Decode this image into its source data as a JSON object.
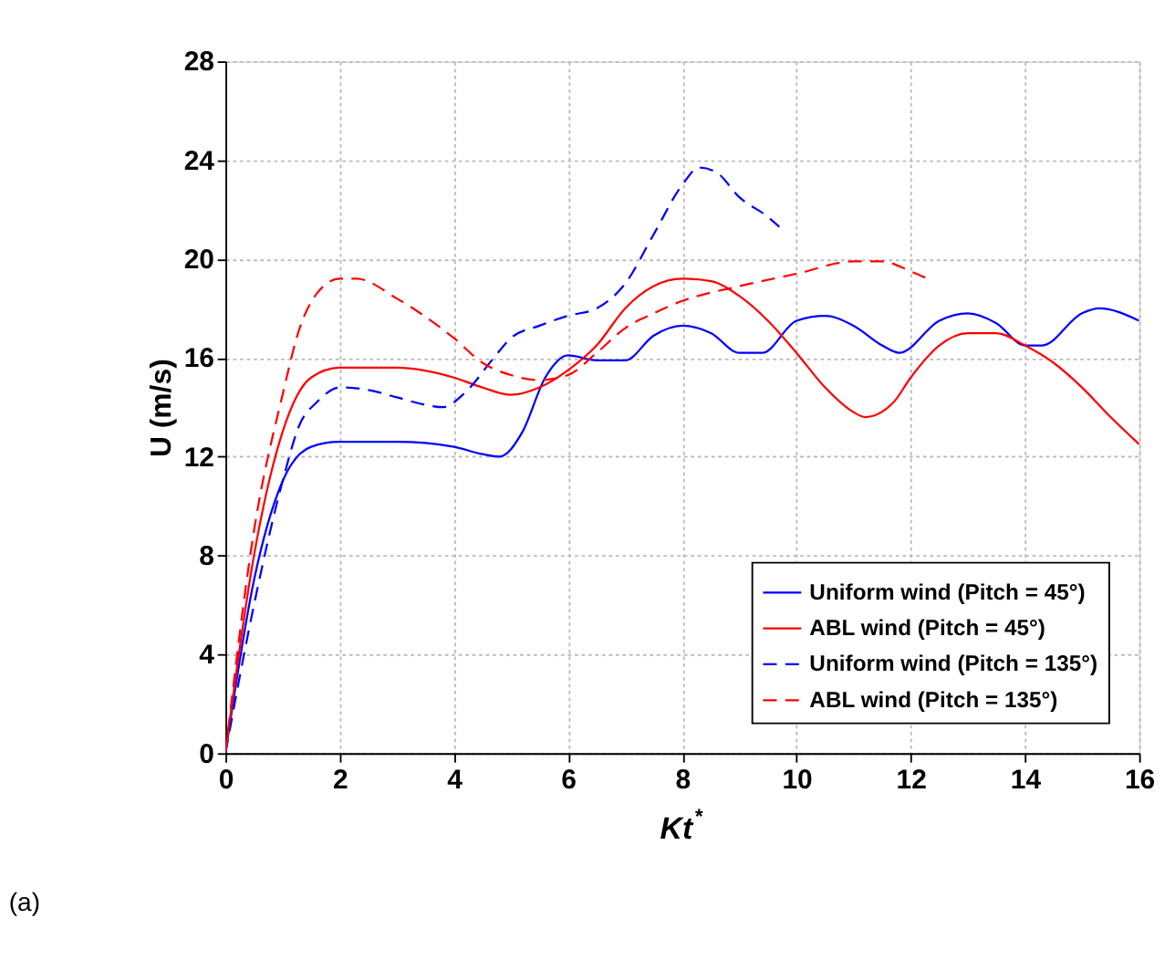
{
  "chart_data": {
    "type": "line",
    "xlabel": "Kt$^{*}$",
    "ylabel": "U (m/s)",
    "xlim": [
      0,
      16
    ],
    "xticks": [
      0,
      2,
      4,
      6,
      8,
      10,
      12,
      14,
      16
    ],
    "ylim": [
      0,
      28
    ],
    "yticks": [
      0,
      4,
      8,
      12,
      16,
      20,
      24,
      28
    ],
    "grid": true,
    "legend": "bottom right",
    "annotations": [
      "(a)"
    ],
    "series": [
      {
        "name": "Uniform wind (Pitch = 45°)",
        "color": "#0000ff",
        "line_style": "solid",
        "x": [
          0,
          0.5,
          1,
          1.5,
          2,
          3,
          4,
          4.5,
          4.8,
          5.2,
          5.6,
          6,
          6.5,
          7,
          7.5,
          8,
          8.5,
          9,
          9.4,
          10,
          10.5,
          11,
          11.5,
          11.8,
          12.5,
          13,
          13.5,
          14,
          14.3,
          15,
          15.3,
          16
        ],
        "values": [
          0,
          7,
          11,
          12.4,
          12.6,
          12.6,
          12.4,
          12.1,
          12.0,
          13,
          15.2,
          16.1,
          15.9,
          15.9,
          16.9,
          17.3,
          17.0,
          16.2,
          16.2,
          17.5,
          17.7,
          17.3,
          16.5,
          16.2,
          17.5,
          17.8,
          17.4,
          16.5,
          16.5,
          17.8,
          18.0,
          17.5
        ]
      },
      {
        "name": "ABL wind (Pitch = 45°)",
        "color": "#ff0000",
        "line_style": "solid",
        "x": [
          0,
          0.5,
          1,
          1.5,
          2,
          3,
          4,
          4.5,
          5,
          5.5,
          6,
          6.5,
          7,
          7.5,
          8,
          8.5,
          9,
          9.5,
          10,
          10.5,
          11,
          11.2,
          11.7,
          12,
          12.5,
          13,
          13.5,
          14,
          14.5,
          15,
          15.5,
          16
        ],
        "values": [
          0,
          8,
          13,
          15.2,
          15.6,
          15.6,
          15.2,
          14.8,
          14.5,
          14.8,
          15.5,
          16.5,
          18,
          18.9,
          19.2,
          19.1,
          18.5,
          17.5,
          16.2,
          14.8,
          13.8,
          13.6,
          14.2,
          15.2,
          16.5,
          17.0,
          17.0,
          16.5,
          15.8,
          14.8,
          13.6,
          12.5
        ]
      },
      {
        "name": "Uniform wind (Pitch = 135°)",
        "color": "#0000ff",
        "line_style": "dashed",
        "x": [
          0,
          0.5,
          1,
          1.3,
          1.6,
          2,
          2.5,
          3,
          3.5,
          3.8,
          4.2,
          4.7,
          5,
          5.5,
          6,
          6.5,
          7,
          7.5,
          8,
          8.3,
          8.6,
          9,
          9.5,
          9.7
        ],
        "values": [
          0,
          6,
          11,
          13.3,
          14.2,
          14.8,
          14.7,
          14.4,
          14.1,
          14.0,
          14.6,
          16.0,
          16.8,
          17.3,
          17.7,
          18.0,
          19.0,
          21.0,
          23.0,
          23.7,
          23.5,
          22.5,
          21.7,
          21.3
        ]
      },
      {
        "name": "ABL wind (Pitch = 135°)",
        "color": "#ff0000",
        "line_style": "dashed",
        "x": [
          0,
          0.5,
          1,
          1.3,
          1.6,
          2,
          2.3,
          3,
          4,
          4.5,
          5,
          5.5,
          6,
          6.5,
          7,
          7.5,
          8,
          9,
          10,
          11,
          11.5,
          12,
          12.3
        ],
        "values": [
          0,
          9,
          14.5,
          17.2,
          18.6,
          19.2,
          19.2,
          18.4,
          16.8,
          15.8,
          15.3,
          15.1,
          15.3,
          16.2,
          17.2,
          17.8,
          18.3,
          18.9,
          19.4,
          19.9,
          19.9,
          19.5,
          19.2
        ]
      }
    ]
  }
}
